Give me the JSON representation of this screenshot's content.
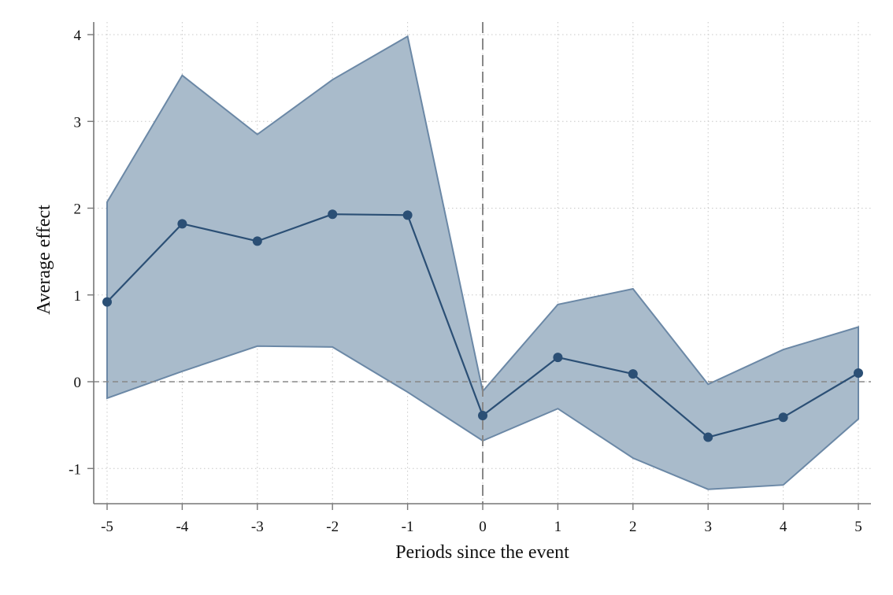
{
  "chart_data": {
    "type": "line",
    "title": "",
    "xlabel": "Periods since the event",
    "ylabel": "Average effect",
    "x": [
      -5,
      -4,
      -3,
      -2,
      -1,
      0,
      1,
      2,
      3,
      4,
      5
    ],
    "xticks": [
      "-5",
      "-4",
      "-3",
      "-2",
      "-1",
      "0",
      "1",
      "2",
      "3",
      "4",
      "5"
    ],
    "yticks": [
      "-1",
      "0",
      "1",
      "2",
      "3",
      "4"
    ],
    "xlim": [
      -5.2,
      5.2
    ],
    "ylim": [
      -1.4,
      4.2
    ],
    "grid": true,
    "legend": "none",
    "series": [
      {
        "values": [
          0.92,
          1.82,
          1.62,
          1.93,
          1.92,
          -0.39,
          0.28,
          0.09,
          -0.64,
          -0.41,
          0.1
        ],
        "ci_lower": [
          -0.19,
          0.12,
          0.41,
          0.4,
          -0.12,
          -0.68,
          -0.31,
          -0.88,
          -1.24,
          -1.19,
          -0.43
        ],
        "ci_upper": [
          2.07,
          3.53,
          2.85,
          3.48,
          3.98,
          -0.11,
          0.89,
          1.07,
          -0.03,
          0.37,
          0.63
        ]
      }
    ],
    "reference_lines": {
      "vertical_x": 0,
      "horizontal_y": 0
    },
    "colors": {
      "line": "#2b4f75",
      "marker": "#2b4f75",
      "band_fill": "#a9bbcb",
      "band_edge": "#6b88a6",
      "reference": "#888888",
      "grid": "#c8c8c8",
      "axis": "#777777"
    }
  }
}
